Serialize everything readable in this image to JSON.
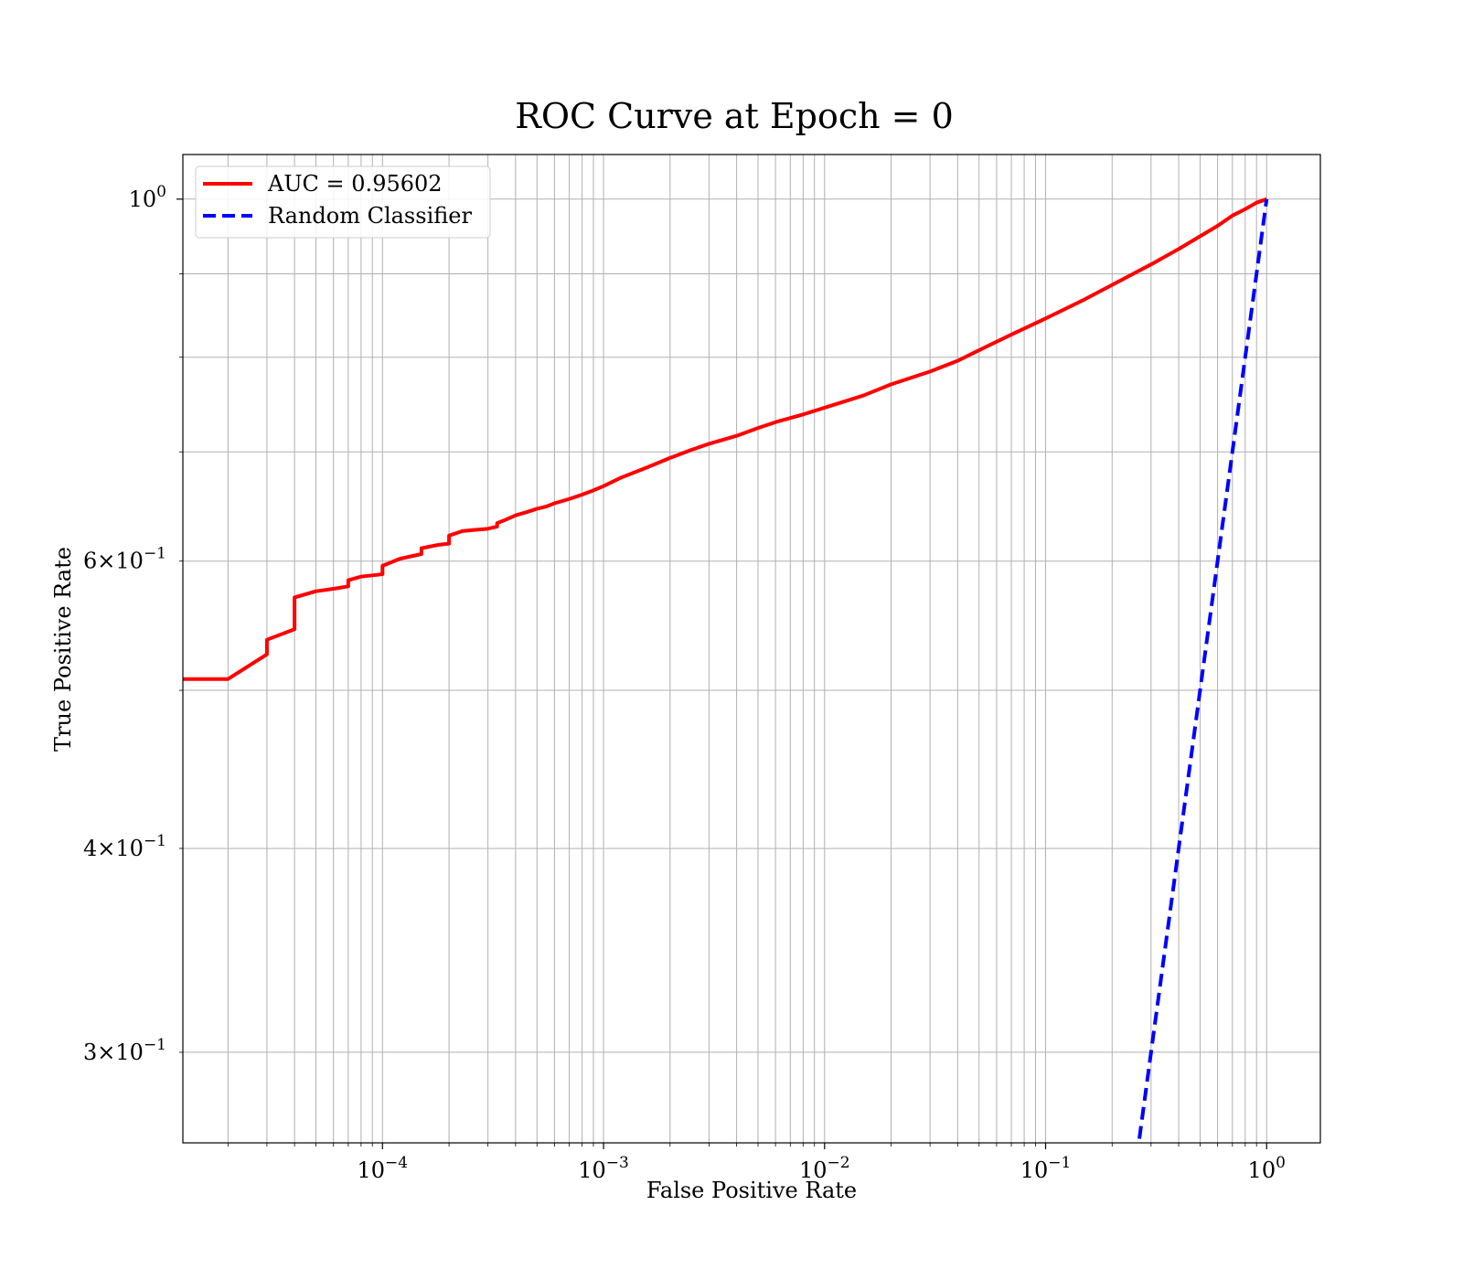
{
  "chart_data": {
    "type": "line",
    "title": "ROC Curve at Epoch = 0",
    "xlabel": "False Positive Rate",
    "ylabel": "True Positive Rate",
    "xscale": "log",
    "yscale": "log",
    "xlim": [
      1.25e-05,
      1.75
    ],
    "ylim": [
      0.264,
      1.065
    ],
    "grid": true,
    "grid_which": "both",
    "legend_location": "upper left",
    "x_ticks": [
      {
        "value": 0.0001,
        "label": "10",
        "exp": "−4"
      },
      {
        "value": 0.001,
        "label": "10",
        "exp": "−3"
      },
      {
        "value": 0.01,
        "label": "10",
        "exp": "−2"
      },
      {
        "value": 0.1,
        "label": "10",
        "exp": "−1"
      },
      {
        "value": 1,
        "label": "10",
        "exp": "0"
      }
    ],
    "y_ticks": [
      {
        "value": 1,
        "label": "10",
        "exp": "0",
        "mantissa": ""
      },
      {
        "value": 0.6,
        "label": "10",
        "exp": "−1",
        "mantissa": "6×"
      },
      {
        "value": 0.4,
        "label": "10",
        "exp": "−1",
        "mantissa": "4×"
      },
      {
        "value": 0.3,
        "label": "10",
        "exp": "−1",
        "mantissa": "3×"
      }
    ],
    "y_minor_grid": [
      0.3,
      0.4,
      0.5,
      0.6,
      0.7,
      0.8,
      0.9
    ],
    "series": [
      {
        "name": "AUC = 0.95602",
        "color": "#ff0000",
        "style": "solid",
        "x": [
          1.25e-05,
          2e-05,
          3e-05,
          3e-05,
          4e-05,
          4e-05,
          5e-05,
          6e-05,
          7e-05,
          7e-05,
          8e-05,
          0.0001,
          0.0001,
          0.00012,
          0.00015,
          0.00015,
          0.00018,
          0.0002,
          0.0002,
          0.00023,
          0.00026,
          0.0003,
          0.00033,
          0.00033,
          0.00036,
          0.0004,
          0.00045,
          0.0005,
          0.00055,
          0.0006,
          0.0007,
          0.0008,
          0.0009,
          0.001,
          0.0012,
          0.0015,
          0.002,
          0.0025,
          0.003,
          0.004,
          0.005,
          0.006,
          0.008,
          0.01,
          0.015,
          0.02,
          0.03,
          0.04,
          0.05,
          0.07,
          0.1,
          0.15,
          0.2,
          0.3,
          0.4,
          0.5,
          0.6,
          0.7,
          0.8,
          0.9,
          1.0
        ],
        "y": [
          0.508,
          0.508,
          0.526,
          0.537,
          0.545,
          0.57,
          0.575,
          0.577,
          0.579,
          0.584,
          0.587,
          0.589,
          0.596,
          0.602,
          0.606,
          0.611,
          0.614,
          0.615,
          0.622,
          0.626,
          0.627,
          0.628,
          0.63,
          0.633,
          0.636,
          0.64,
          0.643,
          0.646,
          0.648,
          0.651,
          0.655,
          0.659,
          0.663,
          0.667,
          0.675,
          0.683,
          0.694,
          0.702,
          0.708,
          0.716,
          0.724,
          0.73,
          0.738,
          0.745,
          0.758,
          0.77,
          0.784,
          0.796,
          0.808,
          0.826,
          0.845,
          0.868,
          0.886,
          0.912,
          0.932,
          0.949,
          0.963,
          0.977,
          0.986,
          0.995,
          1.0
        ]
      },
      {
        "name": "Random Classifier",
        "color": "#0000ff",
        "style": "dashed",
        "x": [
          0.245,
          0.3,
          0.4,
          0.5,
          0.6,
          0.7,
          0.8,
          0.9,
          1.0
        ],
        "y": [
          0.245,
          0.3,
          0.4,
          0.5,
          0.6,
          0.7,
          0.8,
          0.9,
          1.0
        ]
      }
    ]
  }
}
